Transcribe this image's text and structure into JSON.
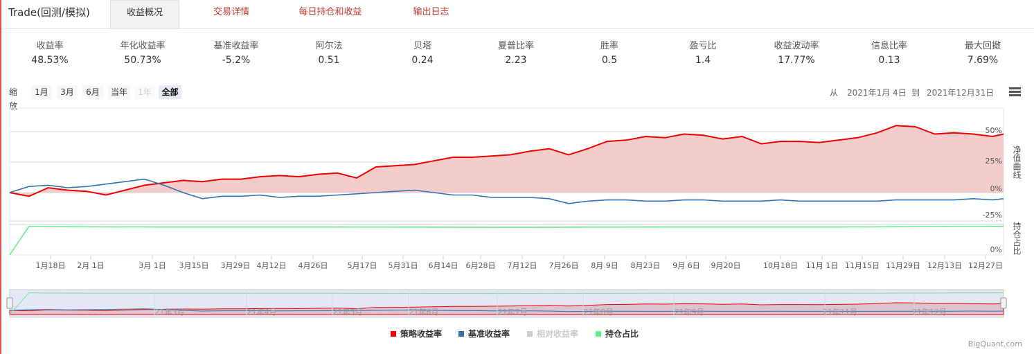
{
  "header": {
    "title": "Trade(回测/模拟)",
    "tabs": [
      {
        "label": "收益概况",
        "active": true
      },
      {
        "label": "交易详情",
        "active": false
      },
      {
        "label": "每日持仓和收益",
        "active": false
      },
      {
        "label": "输出日志",
        "active": false
      }
    ]
  },
  "stats": [
    {
      "label": "收益率",
      "value": "48.53%"
    },
    {
      "label": "年化收益率",
      "value": "50.73%"
    },
    {
      "label": "基准收益率",
      "value": "-5.2%"
    },
    {
      "label": "阿尔法",
      "value": "0.51"
    },
    {
      "label": "贝塔",
      "value": "0.24"
    },
    {
      "label": "夏普比率",
      "value": "2.23"
    },
    {
      "label": "胜率",
      "value": "0.5"
    },
    {
      "label": "盈亏比",
      "value": "1.4"
    },
    {
      "label": "收益波动率",
      "value": "17.77%"
    },
    {
      "label": "信息比率",
      "value": "0.13"
    },
    {
      "label": "最大回撤",
      "value": "7.69%"
    }
  ],
  "zoom": {
    "label": "缩放",
    "buttons": [
      "1月",
      "3月",
      "6月",
      "当年",
      "1年",
      "全部"
    ],
    "disabled": "1年",
    "active": "全部"
  },
  "range": {
    "from_label": "从",
    "from": "2021年1月 4日",
    "to_label": "到",
    "to": "2021年12月31日"
  },
  "axis_titles": {
    "net": "净值曲线",
    "position": "持仓占比"
  },
  "colors": {
    "strategy": "#ee0000",
    "benchmark": "#2f73b0",
    "relative": "#cccccc",
    "position": "#66ee88",
    "strategy_fill": "#f4c6c6",
    "tab_red": "#c0392b",
    "date_blue": "#335cad"
  },
  "legend": [
    {
      "name": "策略收益率",
      "color": "#ee0000",
      "muted": false
    },
    {
      "name": "基准收益率",
      "color": "#2f73b0",
      "muted": false
    },
    {
      "name": "相对收益率",
      "color": "#cccccc",
      "muted": true
    },
    {
      "name": "持仓占比",
      "color": "#66ee88",
      "muted": false
    }
  ],
  "credits": "BigQuant.com",
  "chart_data": {
    "type": "line",
    "x_tick_labels": [
      "1月18日",
      "2月 1日",
      "3月 1日",
      "3月15日",
      "3月29日",
      "4月12日",
      "4月26日",
      "5月17日",
      "5月31日",
      "6月14日",
      "6月28日",
      "7月12日",
      "7月26日",
      "8月 9日",
      "8月23日",
      "9月 6日",
      "9月20日",
      "10月18日",
      "11月 1日",
      "11月15日",
      "11月29日",
      "12月13日",
      "12月27日"
    ],
    "navigator_labels": [
      "21年3月",
      "21年4月",
      "21年5月",
      "21年6月",
      "21年7月",
      "21年8月",
      "21年9月",
      "21年11月",
      "21年12月"
    ],
    "y_ticks": [
      "50%",
      "25%",
      "0%",
      "-25%"
    ],
    "y2_ticks": [
      "0%"
    ],
    "ylim": [
      -25,
      50
    ],
    "series": [
      {
        "name": "策略收益率",
        "x": [
          "2021-01-04",
          "2021-01-11",
          "2021-01-18",
          "2021-01-25",
          "2021-02-01",
          "2021-02-08",
          "2021-02-22",
          "2021-03-01",
          "2021-03-08",
          "2021-03-15",
          "2021-03-22",
          "2021-03-29",
          "2021-04-05",
          "2021-04-12",
          "2021-04-19",
          "2021-04-26",
          "2021-05-03",
          "2021-05-10",
          "2021-05-17",
          "2021-05-24",
          "2021-05-31",
          "2021-06-07",
          "2021-06-14",
          "2021-06-21",
          "2021-06-28",
          "2021-07-05",
          "2021-07-12",
          "2021-07-19",
          "2021-07-26",
          "2021-08-02",
          "2021-08-09",
          "2021-08-16",
          "2021-08-23",
          "2021-08-30",
          "2021-09-06",
          "2021-09-13",
          "2021-09-20",
          "2021-09-27",
          "2021-10-04",
          "2021-10-11",
          "2021-10-18",
          "2021-10-25",
          "2021-11-01",
          "2021-11-08",
          "2021-11-15",
          "2021-11-22",
          "2021-11-29",
          "2021-12-06",
          "2021-12-13",
          "2021-12-20",
          "2021-12-27",
          "2021-12-31"
        ],
        "values": [
          0,
          -3,
          4,
          2,
          1,
          -2,
          6,
          8,
          10,
          9,
          11,
          11,
          13,
          14,
          13,
          15,
          16,
          12,
          21,
          22,
          23,
          26,
          29,
          29,
          30,
          31,
          34,
          36,
          31,
          36,
          42,
          43,
          46,
          45,
          48,
          47,
          44,
          46,
          40,
          42,
          42,
          41,
          43,
          45,
          49,
          55,
          54,
          48,
          49,
          48,
          46,
          48
        ]
      },
      {
        "name": "基准收益率",
        "x": [
          "2021-01-04",
          "2021-01-11",
          "2021-01-18",
          "2021-01-25",
          "2021-02-01",
          "2021-02-08",
          "2021-02-22",
          "2021-03-01",
          "2021-03-08",
          "2021-03-15",
          "2021-03-22",
          "2021-03-29",
          "2021-04-05",
          "2021-04-12",
          "2021-04-19",
          "2021-04-26",
          "2021-05-03",
          "2021-05-10",
          "2021-05-17",
          "2021-05-24",
          "2021-05-31",
          "2021-06-07",
          "2021-06-14",
          "2021-06-21",
          "2021-06-28",
          "2021-07-05",
          "2021-07-12",
          "2021-07-19",
          "2021-07-26",
          "2021-08-02",
          "2021-08-09",
          "2021-08-16",
          "2021-08-23",
          "2021-08-30",
          "2021-09-06",
          "2021-09-13",
          "2021-09-20",
          "2021-09-27",
          "2021-10-04",
          "2021-10-11",
          "2021-10-18",
          "2021-10-25",
          "2021-11-01",
          "2021-11-08",
          "2021-11-15",
          "2021-11-22",
          "2021-11-29",
          "2021-12-06",
          "2021-12-13",
          "2021-12-20",
          "2021-12-27",
          "2021-12-31"
        ],
        "values": [
          0,
          5,
          6,
          4,
          5,
          7,
          11,
          6,
          0,
          -5,
          -3,
          -3,
          -2,
          -4,
          -3,
          -3,
          -2,
          -1,
          0,
          1,
          2,
          0,
          -2,
          -2,
          -4,
          -4,
          -4,
          -5,
          -9,
          -7,
          -6,
          -6,
          -7,
          -7,
          -6,
          -6,
          -7,
          -7,
          -7,
          -6,
          -7,
          -7,
          -7,
          -7,
          -7,
          -6,
          -6,
          -6,
          -6,
          -5,
          -6,
          -5
        ]
      },
      {
        "name": "持仓占比",
        "x": [
          "2021-01-04",
          "2021-01-11",
          "2021-01-18",
          "2021-03-01",
          "2021-05-01",
          "2021-07-01",
          "2021-09-01",
          "2021-11-01",
          "2021-12-31"
        ],
        "values": [
          0,
          98,
          97,
          96,
          96,
          95,
          96,
          96,
          98
        ]
      }
    ]
  }
}
